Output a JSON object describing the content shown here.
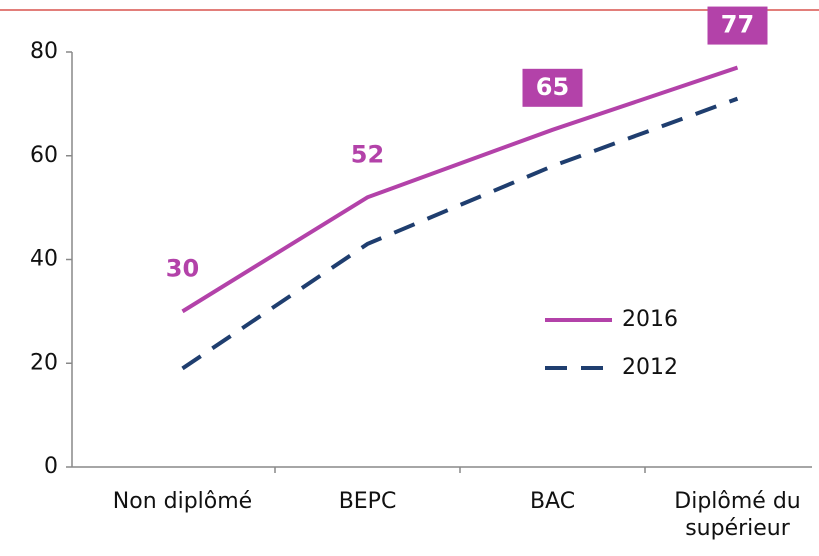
{
  "chart_data": {
    "type": "line",
    "categories": [
      "Non diplômé",
      "BEPC",
      "BAC",
      "Diplômé du supérieur"
    ],
    "series": [
      {
        "name": "2016",
        "color": "#b342a9",
        "values": [
          30,
          52,
          65,
          77
        ]
      },
      {
        "name": "2012",
        "color": "#1f3e6f",
        "values": [
          19,
          43,
          58,
          71
        ]
      }
    ],
    "ylim": [
      0,
      80
    ],
    "yticks": [
      0,
      20,
      40,
      60,
      80
    ],
    "grid": false,
    "legend": "right"
  }
}
